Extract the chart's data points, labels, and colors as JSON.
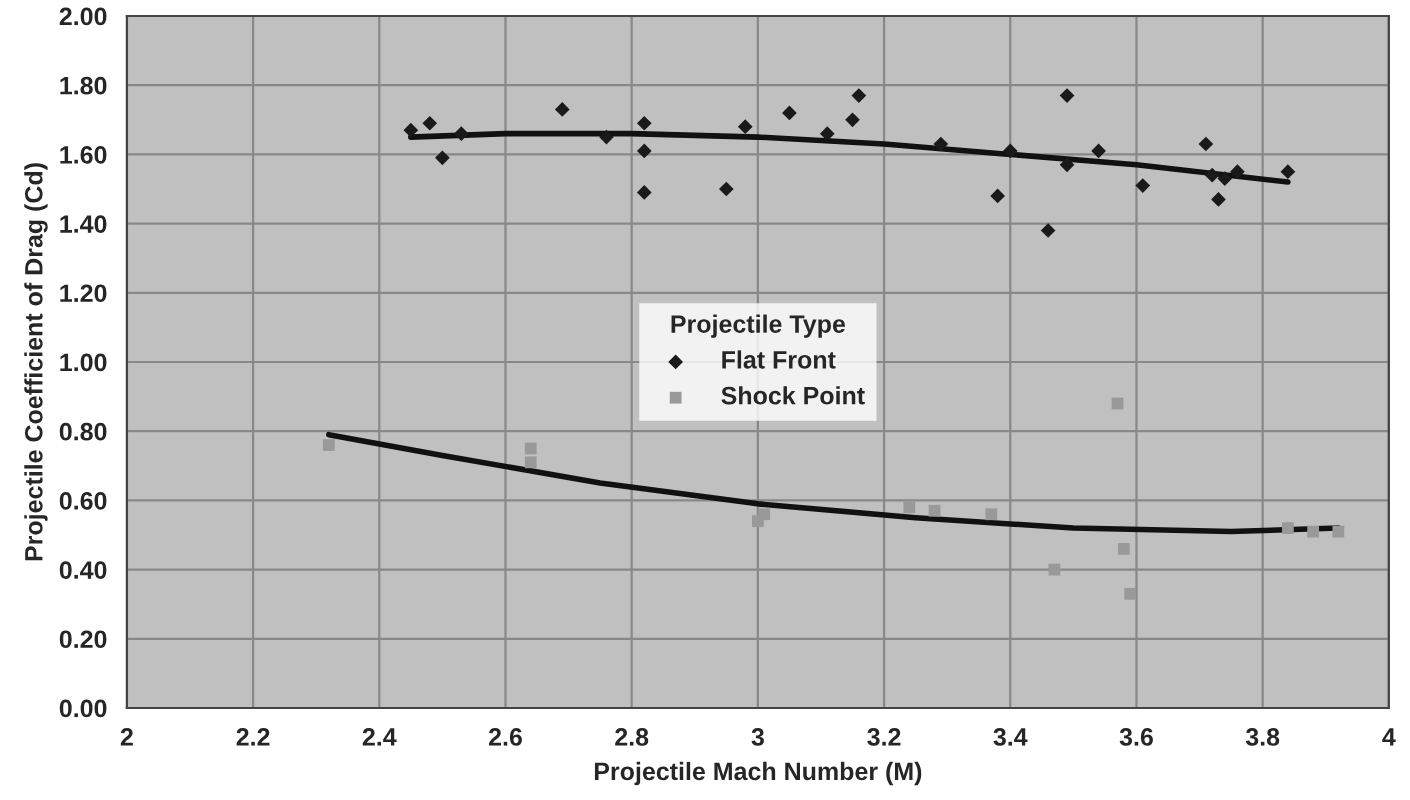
{
  "chart_data": {
    "type": "scatter",
    "xlabel": "Projectile Mach Number (M)",
    "ylabel": "Projectile Coefficient of Drag (Cd)",
    "legend_title": "Projectile Type",
    "legend": "center",
    "grid": true,
    "xlim": [
      2,
      4
    ],
    "xticks": [
      2,
      2.2,
      2.4,
      2.6,
      2.8,
      3,
      3.2,
      3.4,
      3.6,
      3.8,
      4
    ],
    "ylim": [
      0,
      2
    ],
    "yticks": [
      {
        "value": 0,
        "label": "0.00"
      },
      {
        "value": 0.2,
        "label": "0.20"
      },
      {
        "value": 0.4,
        "label": "0.40"
      },
      {
        "value": 0.6,
        "label": "0.60"
      },
      {
        "value": 0.8,
        "label": "0.80"
      },
      {
        "value": 1.0,
        "label": "1.00"
      },
      {
        "value": 1.2,
        "label": "1.20"
      },
      {
        "value": 1.4,
        "label": "1.40"
      },
      {
        "value": 1.6,
        "label": "1.60"
      },
      {
        "value": 1.8,
        "label": "1.80"
      },
      {
        "value": 2.0,
        "label": "2.00"
      }
    ],
    "series": [
      {
        "name": "Flat Front",
        "marker": "diamond",
        "color": "#1a1a1a",
        "x": [
          2.45,
          2.48,
          2.5,
          2.53,
          2.69,
          2.76,
          2.82,
          2.82,
          2.82,
          2.95,
          2.98,
          3.05,
          3.11,
          3.15,
          3.16,
          3.29,
          3.38,
          3.4,
          3.46,
          3.49,
          3.49,
          3.54,
          3.61,
          3.71,
          3.72,
          3.73,
          3.74,
          3.76,
          3.84
        ],
        "values": [
          1.67,
          1.69,
          1.59,
          1.66,
          1.73,
          1.65,
          1.61,
          1.69,
          1.49,
          1.5,
          1.68,
          1.72,
          1.66,
          1.7,
          1.77,
          1.63,
          1.48,
          1.61,
          1.38,
          1.57,
          1.77,
          1.61,
          1.51,
          1.63,
          1.54,
          1.47,
          1.53,
          1.55,
          1.55
        ]
      },
      {
        "name": "Shock Point",
        "marker": "square",
        "color": "#999999",
        "x": [
          2.32,
          2.64,
          2.64,
          3.0,
          3.01,
          3.24,
          3.28,
          3.37,
          3.47,
          3.57,
          3.58,
          3.59,
          3.84,
          3.88,
          3.92
        ],
        "values": [
          0.76,
          0.75,
          0.71,
          0.54,
          0.56,
          0.58,
          0.57,
          0.56,
          0.4,
          0.88,
          0.46,
          0.33,
          0.52,
          0.51,
          0.51
        ]
      },
      {
        "type": "line",
        "color": "#111111",
        "x": [
          2.45,
          2.6,
          2.8,
          3.0,
          3.2,
          3.4,
          3.6,
          3.84
        ],
        "values": [
          1.65,
          1.66,
          1.66,
          1.65,
          1.63,
          1.6,
          1.57,
          1.52
        ]
      },
      {
        "type": "line",
        "color": "#111111",
        "x": [
          2.32,
          2.5,
          2.75,
          3.0,
          3.25,
          3.5,
          3.75,
          3.92
        ],
        "values": [
          0.79,
          0.73,
          0.65,
          0.59,
          0.55,
          0.52,
          0.51,
          0.52
        ]
      }
    ]
  }
}
